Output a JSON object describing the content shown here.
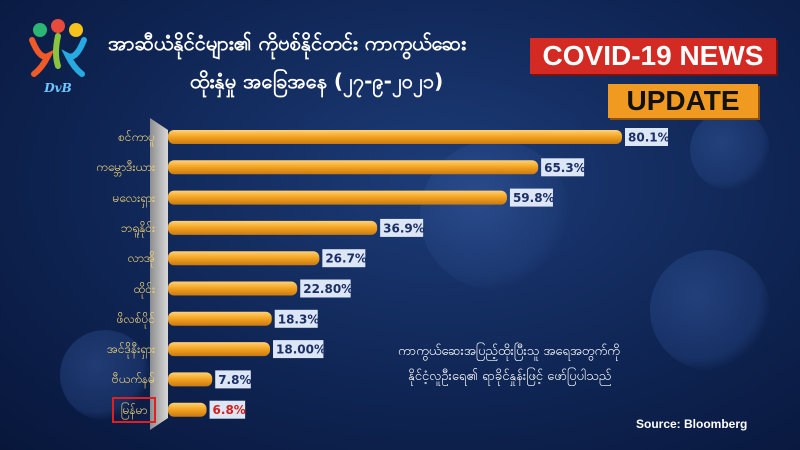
{
  "title_line1": "အာဆီယံနိုင်ငံများ၏ ကိုဗစ်နိုင်တင်း ကာကွယ်ဆေး",
  "title_line2": "ထိုးနှံမှု အခြေအနေ (၂၇-၉-၂၀၂၁)",
  "logo_text": "DvB",
  "badge_news": "COVID-19 NEWS",
  "badge_update": "UPDATE",
  "note_line1": "ကာကွယ်ဆေးအပြည့်ထိုးပြီးသူ အရေအတွက်ကို",
  "note_line2": "နိုင်ငံ့လူဦးရေ၏ ရာခိုင်နှုန်းဖြင့် ဖော်ပြပါသည်",
  "source": "Source: Bloomberg",
  "colors": {
    "bar": "#f5a623",
    "bar_dark": "#c97a10",
    "label_bg": "#dde6f5",
    "label_text": "#1b2e66",
    "highlight_text": "#d0211c",
    "highlight_box": "#e02020",
    "category_text": "#f7d878"
  },
  "chart_data": {
    "type": "bar",
    "orientation": "horizontal",
    "categories": [
      "စင်ကာပူ",
      "ကမ္ဘောဒီးယား",
      "မလေးရှား",
      "ဘရူနိုင်း",
      "လာအို",
      "ထိုင်း",
      "ဖိလစ်ပိုင်",
      "အင်ဒိုနီးရှား",
      "ဗီယက်နမ်",
      "မြန်မာ"
    ],
    "values": [
      80.1,
      65.3,
      59.8,
      36.9,
      26.7,
      22.8,
      18.3,
      18.0,
      7.8,
      6.8
    ],
    "value_labels": [
      "80.1%",
      "65.3%",
      "59.8%",
      "36.9%",
      "26.7%",
      "22.80%",
      "18.3%",
      "18.00%",
      "7.8%",
      "6.8%"
    ],
    "highlight": "မြန်မာ",
    "xlim": [
      0,
      100
    ],
    "grid": false,
    "legend": "none"
  }
}
